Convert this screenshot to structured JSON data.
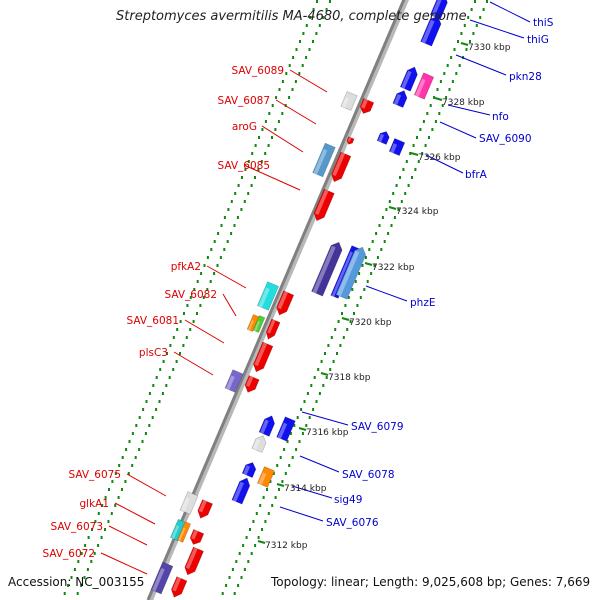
{
  "title": "Streptomyces avermitilis MA-4680, complete genome",
  "footer": {
    "accession": "Accession: NC_003155",
    "summary": "Topology: linear; Length: 9,025,608 bp; Genes: 7,669"
  },
  "colors": {
    "forward_label": "#dd0000",
    "reverse_label": "#0000cc",
    "axis": "#8a8a8a",
    "dots": "#118811"
  },
  "left_labels": [
    {
      "text": "SAV_6089"
    },
    {
      "text": "SAV_6087"
    },
    {
      "text": "aroG"
    },
    {
      "text": "SAV_6085"
    },
    {
      "text": "pfkA2"
    },
    {
      "text": "SAV_6082"
    },
    {
      "text": "SAV_6081"
    },
    {
      "text": "plsC3"
    },
    {
      "text": "SAV_6075"
    },
    {
      "text": "glkA1"
    },
    {
      "text": "SAV_6073"
    },
    {
      "text": "SAV_6072"
    }
  ],
  "right_labels": [
    {
      "text": "thiS"
    },
    {
      "text": "thiG"
    },
    {
      "text": "pkn28"
    },
    {
      "text": "nfo"
    },
    {
      "text": "SAV_6090"
    },
    {
      "text": "bfrA"
    },
    {
      "text": "phzE"
    },
    {
      "text": "SAV_6079"
    },
    {
      "text": "SAV_6078"
    },
    {
      "text": "sig49"
    },
    {
      "text": "SAV_6076"
    }
  ],
  "ticks": [
    {
      "text": "7330 kbp"
    },
    {
      "text": "7328 kbp"
    },
    {
      "text": "7326 kbp"
    },
    {
      "text": "7324 kbp"
    },
    {
      "text": "7322 kbp"
    },
    {
      "text": "7320 kbp"
    },
    {
      "text": "7318 kbp"
    },
    {
      "text": "7316 kbp"
    },
    {
      "text": "7314 kbp"
    },
    {
      "text": "7312 kbp"
    }
  ],
  "genes": [
    {
      "strand": "forward",
      "color": "#dddddd"
    },
    {
      "strand": "forward",
      "color": "#ee0000"
    },
    {
      "strand": "forward",
      "color": "#ee0000"
    },
    {
      "strand": "forward",
      "color": "#5599cc"
    },
    {
      "strand": "forward",
      "color": "#ee0000"
    },
    {
      "strand": "forward",
      "color": "#ee0000"
    },
    {
      "strand": "forward",
      "color": "#22dddd"
    },
    {
      "strand": "forward",
      "color": "#ee0000"
    },
    {
      "strand": "forward",
      "color": "#ff8800"
    },
    {
      "strand": "forward",
      "color": "#55cc33"
    },
    {
      "strand": "forward",
      "color": "#ee0000"
    },
    {
      "strand": "forward",
      "color": "#ee0000"
    },
    {
      "strand": "forward",
      "color": "#7766cc"
    },
    {
      "strand": "forward",
      "color": "#ee0000"
    },
    {
      "strand": "forward",
      "color": "#dddddd"
    },
    {
      "strand": "forward",
      "color": "#ee0000"
    },
    {
      "strand": "forward",
      "color": "#22cccc"
    },
    {
      "strand": "forward",
      "color": "#ff8800"
    },
    {
      "strand": "forward",
      "color": "#ee0000"
    },
    {
      "strand": "forward",
      "color": "#ee0000"
    },
    {
      "strand": "forward",
      "color": "#5544aa"
    },
    {
      "strand": "forward",
      "color": "#ee0000"
    },
    {
      "strand": "reverse",
      "color": "#1111ee"
    },
    {
      "strand": "reverse",
      "color": "#1111ee"
    },
    {
      "strand": "reverse",
      "color": "#1111ee"
    },
    {
      "strand": "reverse",
      "color": "#1111ee"
    },
    {
      "strand": "reverse",
      "color": "#ff33aa"
    },
    {
      "strand": "reverse",
      "color": "#1111ee"
    },
    {
      "strand": "reverse",
      "color": "#1111ee"
    },
    {
      "strand": "reverse",
      "color": "#443399"
    },
    {
      "strand": "reverse",
      "color": "#1111ee"
    },
    {
      "strand": "reverse",
      "color": "#5599dd"
    },
    {
      "strand": "reverse",
      "color": "#1111ee"
    },
    {
      "strand": "reverse",
      "color": "#dddddd"
    },
    {
      "strand": "reverse",
      "color": "#1111ee"
    },
    {
      "strand": "reverse",
      "color": "#1111ee"
    },
    {
      "strand": "reverse",
      "color": "#ff8800"
    },
    {
      "strand": "reverse",
      "color": "#1111ee"
    }
  ]
}
